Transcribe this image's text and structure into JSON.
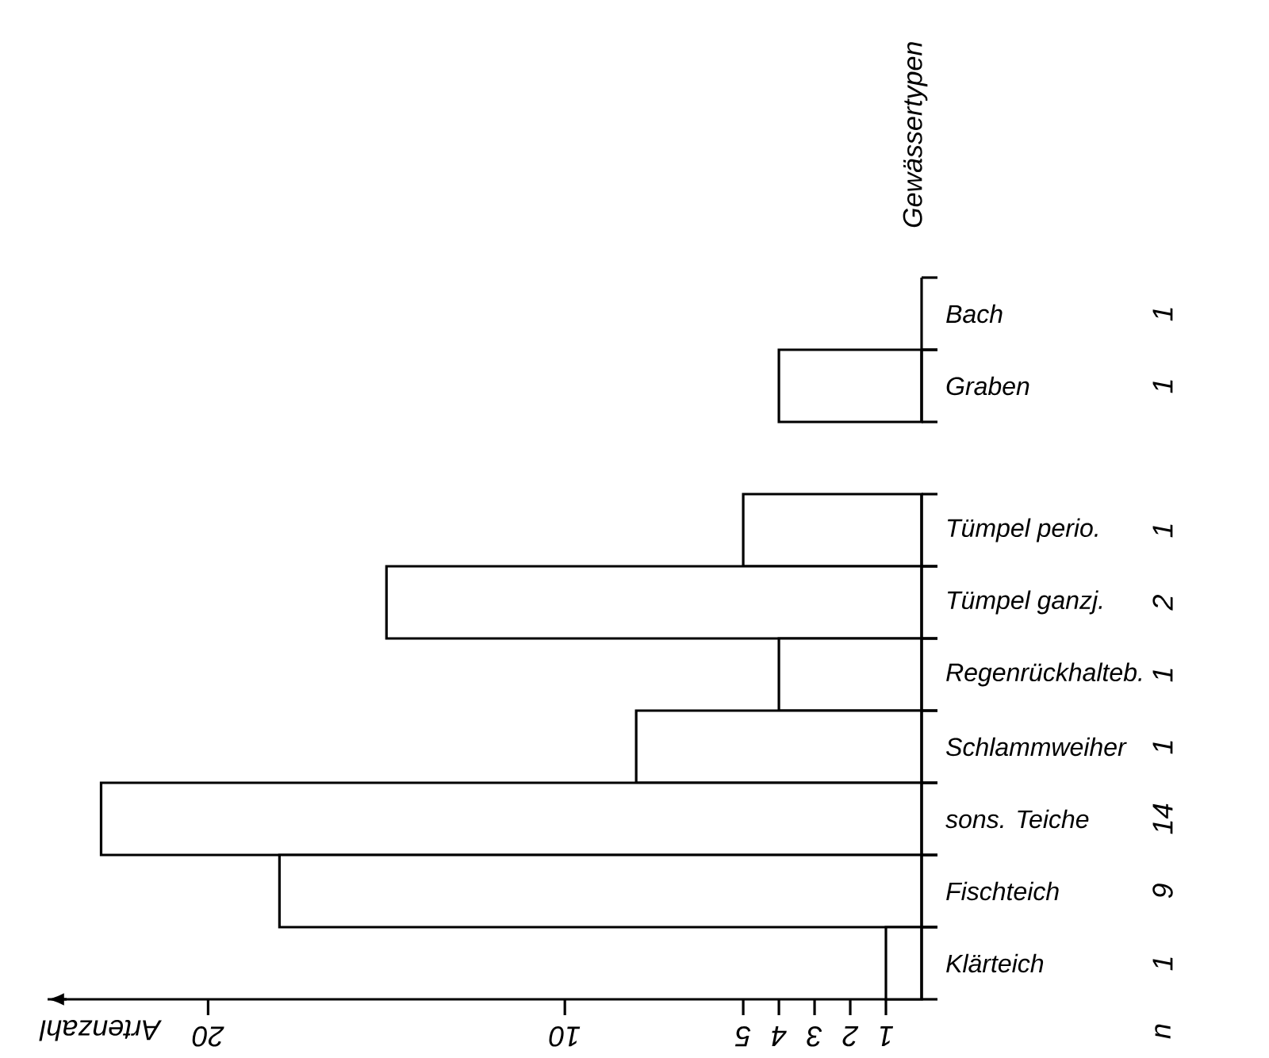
{
  "chart_data": {
    "type": "bar",
    "orientation": "horizontal",
    "xlabel": "Artenzahl",
    "ylabel": "Gewässertypen",
    "categories": [
      "Bach",
      "Graben",
      null,
      "Tümpel perio.",
      "Tümpel ganzj.",
      "Regenrückhalteb.",
      "Schlammweiher",
      "sons. Teiche",
      "Fischteich",
      "Klärteich"
    ],
    "values": [
      null,
      4,
      null,
      5,
      15,
      4,
      8,
      23,
      18,
      1
    ],
    "color": "#ffffff",
    "xlim": [
      24.5,
      0
    ],
    "xticks": [
      1,
      2,
      3,
      4,
      5,
      10,
      20
    ],
    "annotations": [
      "n",
      "1",
      "1",
      "1",
      "2",
      "1",
      "1",
      "14",
      "9",
      "1"
    ]
  }
}
